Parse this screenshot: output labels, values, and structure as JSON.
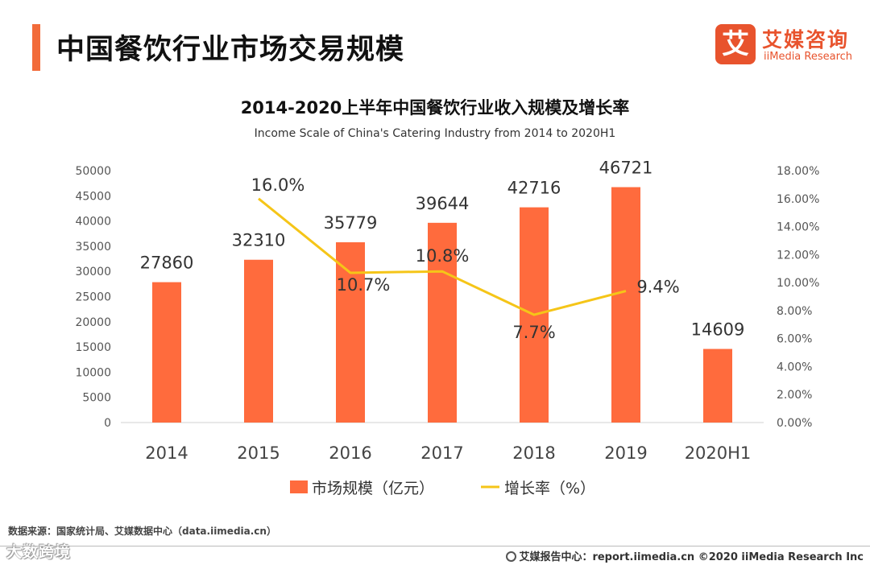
{
  "header": {
    "title": "中国餐饮行业市场交易规模"
  },
  "logo": {
    "mark": "艾",
    "name_cn": "艾媒咨询",
    "name_en": "iiMedia Research"
  },
  "footer": {
    "source": "数据来源：国家统计局、艾媒数据中心（data.iimedia.cn）",
    "watermark": "大数跨境",
    "report": "艾媒报告中心：report.iimedia.cn   ©2020  iiMedia Research  Inc"
  },
  "chart_data": {
    "type": "bar",
    "title": "2014-2020上半年中国餐饮行业收入规模及增长率",
    "subtitle": "Income Scale of China's Catering Industry from 2014 to 2020H1",
    "categories": [
      "2014",
      "2015",
      "2016",
      "2017",
      "2018",
      "2019",
      "2020H1"
    ],
    "series": [
      {
        "name": "市场规模（亿元）",
        "type": "bar",
        "axis": "left",
        "color": "#ff6b3d",
        "values": [
          27860,
          32310,
          35779,
          39644,
          42716,
          46721,
          14609
        ],
        "labels": [
          "27860",
          "32310",
          "35779",
          "39644",
          "42716",
          "46721",
          "14609"
        ]
      },
      {
        "name": "增长率（%）",
        "type": "line",
        "axis": "right",
        "color": "#f5c518",
        "values": [
          null,
          16.0,
          10.7,
          10.8,
          7.7,
          9.4,
          null
        ],
        "labels": [
          "",
          "16.0%",
          "10.7%",
          "10.8%",
          "7.7%",
          "9.4%",
          ""
        ]
      }
    ],
    "y_left": {
      "min": 0,
      "max": 50000,
      "ticks": [
        "0",
        "5000",
        "10000",
        "15000",
        "20000",
        "25000",
        "30000",
        "35000",
        "40000",
        "45000",
        "50000"
      ]
    },
    "y_right": {
      "min": 0,
      "max": 18,
      "ticks": [
        "0.00%",
        "2.00%",
        "4.00%",
        "6.00%",
        "8.00%",
        "10.00%",
        "12.00%",
        "14.00%",
        "16.00%",
        "18.00%"
      ]
    },
    "grid": false,
    "legend_position": "bottom"
  }
}
